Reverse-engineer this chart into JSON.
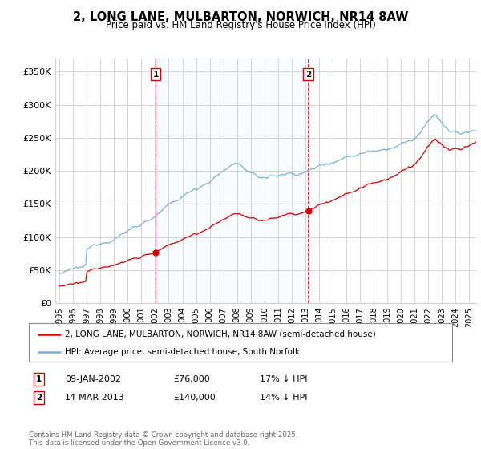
{
  "title": "2, LONG LANE, MULBARTON, NORWICH, NR14 8AW",
  "subtitle": "Price paid vs. HM Land Registry's House Price Index (HPI)",
  "ylabel_ticks": [
    "£0",
    "£50K",
    "£100K",
    "£150K",
    "£200K",
    "£250K",
    "£300K",
    "£350K"
  ],
  "ytick_vals": [
    0,
    50000,
    100000,
    150000,
    200000,
    250000,
    300000,
    350000
  ],
  "ylim": [
    0,
    370000
  ],
  "xlim_start": 1994.7,
  "xlim_end": 2025.5,
  "sale1_x": 2002.03,
  "sale1_price": 76000,
  "sale1_label": "1",
  "sale1_date_str": "09-JAN-2002",
  "sale1_pct": "17%",
  "sale2_x": 2013.2,
  "sale2_price": 140000,
  "sale2_label": "2",
  "sale2_date_str": "14-MAR-2013",
  "sale2_pct": "14%",
  "legend_line1": "2, LONG LANE, MULBARTON, NORWICH, NR14 8AW (semi-detached house)",
  "legend_line2": "HPI: Average price, semi-detached house, South Norfolk",
  "footer": "Contains HM Land Registry data © Crown copyright and database right 2025.\nThis data is licensed under the Open Government Licence v3.0.",
  "line_color_red": "#cc0000",
  "line_color_blue": "#7ab0d4",
  "vline_color": "#cc0000",
  "shade_color": "#ddeeff",
  "background_color": "#ffffff",
  "grid_color": "#cccccc"
}
